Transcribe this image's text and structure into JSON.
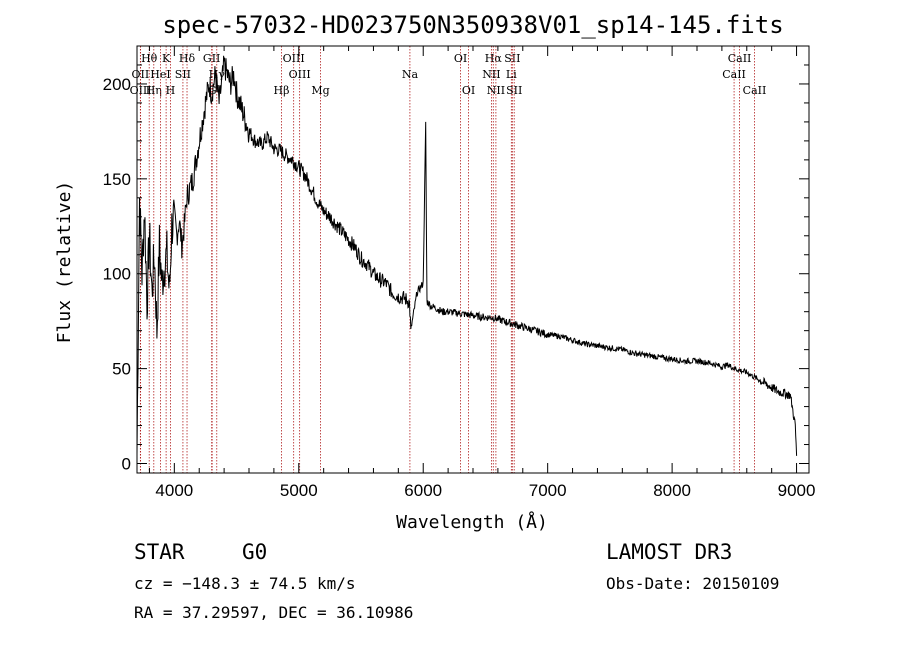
{
  "chart_data": {
    "type": "line",
    "title": "spec-57032-HD023750N350938V01_sp14-145.fits",
    "xlabel": "Wavelength (Å)",
    "ylabel": "Flux (relative)",
    "xlim": [
      3700,
      9100
    ],
    "ylim": [
      -5,
      220
    ],
    "xticks": [
      4000,
      5000,
      6000,
      7000,
      8000,
      9000
    ],
    "yticks": [
      0,
      50,
      100,
      150,
      200
    ],
    "series": [
      {
        "name": "flux",
        "x": [
          3700,
          3720,
          3740,
          3760,
          3780,
          3800,
          3820,
          3840,
          3860,
          3880,
          3900,
          3920,
          3940,
          3960,
          3980,
          4000,
          4020,
          4040,
          4060,
          4080,
          4100,
          4150,
          4200,
          4250,
          4280,
          4300,
          4330,
          4360,
          4400,
          4450,
          4480,
          4500,
          4550,
          4600,
          4650,
          4700,
          4750,
          4800,
          4850,
          4900,
          4950,
          5000,
          5050,
          5100,
          5150,
          5200,
          5250,
          5300,
          5350,
          5400,
          5450,
          5500,
          5550,
          5600,
          5650,
          5700,
          5750,
          5800,
          5850,
          5890,
          5900,
          5950,
          6000,
          6020,
          6030,
          6040,
          6060,
          6100,
          6150,
          6200,
          6300,
          6400,
          6500,
          6560,
          6600,
          6700,
          6800,
          6900,
          7000,
          7100,
          7200,
          7300,
          7400,
          7500,
          7600,
          7700,
          7800,
          7900,
          8000,
          8100,
          8200,
          8300,
          8400,
          8450,
          8500,
          8550,
          8600,
          8650,
          8700,
          8750,
          8800,
          8850,
          8900,
          8950,
          8990,
          9000
        ],
        "y": [
          5,
          140,
          100,
          135,
          85,
          120,
          90,
          110,
          70,
          115,
          95,
          105,
          110,
          90,
          125,
          130,
          120,
          128,
          115,
          125,
          140,
          150,
          170,
          190,
          200,
          195,
          205,
          190,
          210,
          200,
          205,
          195,
          185,
          175,
          170,
          168,
          172,
          166,
          165,
          162,
          160,
          156,
          152,
          145,
          138,
          133,
          130,
          126,
          122,
          118,
          114,
          108,
          105,
          100,
          97,
          95,
          90,
          88,
          87,
          85,
          70,
          90,
          95,
          180,
          85,
          85,
          83,
          82,
          80,
          80,
          79,
          78,
          77,
          77,
          76,
          74,
          72,
          70,
          68,
          67,
          65,
          63,
          62,
          61,
          60,
          58,
          57,
          56,
          55,
          54,
          54,
          53,
          51,
          52,
          50,
          49,
          48,
          46,
          44,
          42,
          40,
          38,
          37,
          36,
          20,
          4
        ]
      }
    ],
    "lines": [
      {
        "name": "Hθ",
        "wl": 3798,
        "row": 1
      },
      {
        "name": "OII",
        "wl": 3727,
        "row": 2
      },
      {
        "name": "OIII",
        "wl": 3729,
        "row": 3
      },
      {
        "name": "Hη",
        "wl": 3835,
        "row": 3
      },
      {
        "name": "K",
        "wl": 3934,
        "row": 1
      },
      {
        "name": "HeI",
        "wl": 3889,
        "row": 2
      },
      {
        "name": "SII",
        "wl": 4069,
        "row": 2
      },
      {
        "name": "H",
        "wl": 3969,
        "row": 3
      },
      {
        "name": "Hδ",
        "wl": 4102,
        "row": 1
      },
      {
        "name": "GII",
        "wl": 4300,
        "row": 1
      },
      {
        "name": "Hγ",
        "wl": 4341,
        "row": 2
      },
      {
        "name": "G",
        "wl": 4304,
        "row": 3
      },
      {
        "name": "OIII",
        "wl": 4959,
        "row": 1
      },
      {
        "name": "OIII",
        "wl": 5007,
        "row": 2
      },
      {
        "name": "Hβ",
        "wl": 4861,
        "row": 3
      },
      {
        "name": "Mg",
        "wl": 5175,
        "row": 3
      },
      {
        "name": "Na",
        "wl": 5893,
        "row": 2
      },
      {
        "name": "OI",
        "wl": 6300,
        "row": 1
      },
      {
        "name": "OI",
        "wl": 6364,
        "row": 3
      },
      {
        "name": "Hα",
        "wl": 6563,
        "row": 1
      },
      {
        "name": "SII",
        "wl": 6716,
        "row": 1
      },
      {
        "name": "NII",
        "wl": 6548,
        "row": 2
      },
      {
        "name": "Li",
        "wl": 6708,
        "row": 2
      },
      {
        "name": "NII",
        "wl": 6584,
        "row": 3
      },
      {
        "name": "SII",
        "wl": 6731,
        "row": 3
      },
      {
        "name": "CaII",
        "wl": 8542,
        "row": 1
      },
      {
        "name": "CaII",
        "wl": 8498,
        "row": 2
      },
      {
        "name": "CaII",
        "wl": 8662,
        "row": 3
      }
    ],
    "colors": {
      "axis": "#000000",
      "spectrum": "#000000",
      "line_markers": "#b22222"
    }
  },
  "info": {
    "class": "STAR",
    "subclass": "G0",
    "survey": "LAMOST DR3",
    "cz": "cz = −148.3 ± 74.5 km/s",
    "obs_date": "Obs-Date: 20150109",
    "coords": "RA =  37.29597, DEC =  36.10986"
  }
}
